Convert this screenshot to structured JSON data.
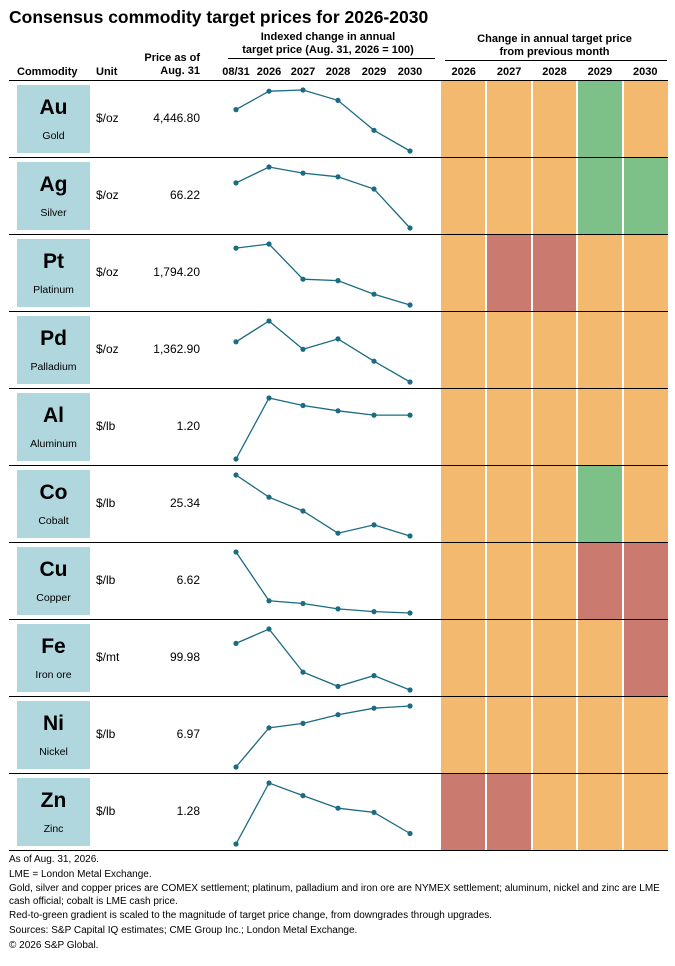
{
  "chart_data": {
    "type": "table",
    "title": "Consensus commodity target prices for 2026-2030",
    "columns": {
      "commodity": "Commodity",
      "unit": "Unit",
      "price_line1": "Price as of",
      "price_line2": "Aug. 31",
      "indexed_line1": "Indexed change in annual",
      "indexed_line2": "target price (Aug. 31, 2026 = 100)",
      "change_line1": "Change in annual target price",
      "change_line2": "from previous month"
    },
    "spark_x": [
      "08/31",
      "2026",
      "2027",
      "2028",
      "2029",
      "2030"
    ],
    "heat_years": [
      "2026",
      "2027",
      "2028",
      "2029",
      "2030"
    ],
    "heat_colors": {
      "down": "#cb7a70",
      "flat": "#f3b96e",
      "up": "#7dc088"
    },
    "rows": [
      {
        "symbol": "Au",
        "name": "Gold",
        "unit": "$/oz",
        "price": "4,446.80",
        "indexed": [
          100,
          108,
          108.5,
          104,
          91,
          82
        ],
        "change": [
          "flat",
          "flat",
          "flat",
          "up",
          "flat"
        ]
      },
      {
        "symbol": "Ag",
        "name": "Silver",
        "unit": "$/oz",
        "price": "66.22",
        "indexed": [
          100,
          113,
          108,
          105,
          95,
          63
        ],
        "change": [
          "flat",
          "flat",
          "flat",
          "up",
          "up"
        ]
      },
      {
        "symbol": "Pt",
        "name": "Platinum",
        "unit": "$/oz",
        "price": "1,794.20",
        "indexed": [
          100,
          103,
          77,
          76,
          66,
          58
        ],
        "change": [
          "flat",
          "down",
          "down",
          "flat",
          "flat"
        ]
      },
      {
        "symbol": "Pd",
        "name": "Palladium",
        "unit": "$/oz",
        "price": "1,362.90",
        "indexed": [
          100,
          114,
          95,
          102,
          87,
          73
        ],
        "change": [
          "flat",
          "flat",
          "flat",
          "flat",
          "flat"
        ]
      },
      {
        "symbol": "Al",
        "name": "Aluminum",
        "unit": "$/lb",
        "price": "1.20",
        "indexed": [
          100,
          157,
          150,
          145,
          141,
          141
        ],
        "change": [
          "flat",
          "flat",
          "flat",
          "flat",
          "flat"
        ]
      },
      {
        "symbol": "Co",
        "name": "Cobalt",
        "unit": "$/lb",
        "price": "25.34",
        "indexed": [
          100,
          92,
          87,
          79,
          82,
          78
        ],
        "change": [
          "flat",
          "flat",
          "flat",
          "up",
          "flat"
        ]
      },
      {
        "symbol": "Cu",
        "name": "Copper",
        "unit": "$/lb",
        "price": "6.62",
        "indexed": [
          100,
          82,
          81,
          79,
          78,
          77.5
        ],
        "change": [
          "flat",
          "flat",
          "flat",
          "down",
          "down"
        ]
      },
      {
        "symbol": "Fe",
        "name": "Iron ore",
        "unit": "$/mt",
        "price": "99.98",
        "indexed": [
          100,
          104,
          92,
          88,
          91,
          87
        ],
        "change": [
          "flat",
          "flat",
          "flat",
          "flat",
          "down"
        ]
      },
      {
        "symbol": "Ni",
        "name": "Nickel",
        "unit": "$/lb",
        "price": "6.97",
        "indexed": [
          100,
          118,
          120,
          124,
          127,
          128
        ],
        "change": [
          "flat",
          "flat",
          "flat",
          "flat",
          "flat"
        ]
      },
      {
        "symbol": "Zn",
        "name": "Zinc",
        "unit": "$/lb",
        "price": "1.28",
        "indexed": [
          100,
          129,
          123,
          117,
          115,
          105
        ],
        "change": [
          "down",
          "down",
          "flat",
          "flat",
          "flat"
        ]
      }
    ]
  },
  "notes": [
    "As of Aug. 31, 2026.",
    "LME = London Metal Exchange.",
    "Gold, silver and copper prices are COMEX settlement; platinum, palladium and iron ore are NYMEX settlement; aluminum, nickel and zinc are LME cash official; cobalt is LME cash price.",
    "Red-to-green gradient is scaled to the magnitude of target price change, from downgrades through upgrades.",
    "Sources: S&P Capital IQ estimates; CME Group Inc.; London Metal Exchange.",
    "© 2026 S&P Global."
  ]
}
